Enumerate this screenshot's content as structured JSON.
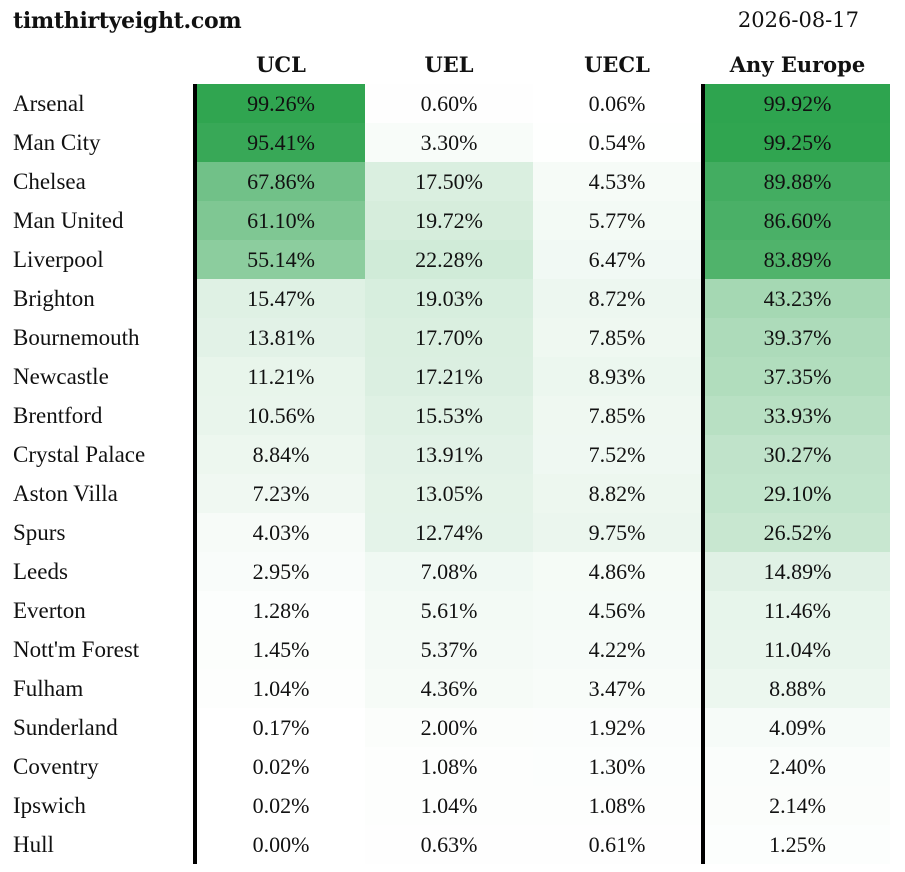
{
  "site": "timthirtyeight.com",
  "date": "2026-08-17",
  "headers": [
    "UCL",
    "UEL",
    "UECL",
    "Any Europe"
  ],
  "color_scale": {
    "low": "#ffffff",
    "high": "#2ea44f"
  },
  "rows": [
    {
      "team": "Arsenal",
      "values": [
        "99.26%",
        "0.60%",
        "0.06%",
        "99.92%"
      ]
    },
    {
      "team": "Man City",
      "values": [
        "95.41%",
        "3.30%",
        "0.54%",
        "99.25%"
      ]
    },
    {
      "team": "Chelsea",
      "values": [
        "67.86%",
        "17.50%",
        "4.53%",
        "89.88%"
      ]
    },
    {
      "team": "Man United",
      "values": [
        "61.10%",
        "19.72%",
        "5.77%",
        "86.60%"
      ]
    },
    {
      "team": "Liverpool",
      "values": [
        "55.14%",
        "22.28%",
        "6.47%",
        "83.89%"
      ]
    },
    {
      "team": "Brighton",
      "values": [
        "15.47%",
        "19.03%",
        "8.72%",
        "43.23%"
      ]
    },
    {
      "team": "Bournemouth",
      "values": [
        "13.81%",
        "17.70%",
        "7.85%",
        "39.37%"
      ]
    },
    {
      "team": "Newcastle",
      "values": [
        "11.21%",
        "17.21%",
        "8.93%",
        "37.35%"
      ]
    },
    {
      "team": "Brentford",
      "values": [
        "10.56%",
        "15.53%",
        "7.85%",
        "33.93%"
      ]
    },
    {
      "team": "Crystal Palace",
      "values": [
        "8.84%",
        "13.91%",
        "7.52%",
        "30.27%"
      ]
    },
    {
      "team": "Aston Villa",
      "values": [
        "7.23%",
        "13.05%",
        "8.82%",
        "29.10%"
      ]
    },
    {
      "team": "Spurs",
      "values": [
        "4.03%",
        "12.74%",
        "9.75%",
        "26.52%"
      ]
    },
    {
      "team": "Leeds",
      "values": [
        "2.95%",
        "7.08%",
        "4.86%",
        "14.89%"
      ]
    },
    {
      "team": "Everton",
      "values": [
        "1.28%",
        "5.61%",
        "4.56%",
        "11.46%"
      ]
    },
    {
      "team": "Nott'm Forest",
      "values": [
        "1.45%",
        "5.37%",
        "4.22%",
        "11.04%"
      ]
    },
    {
      "team": "Fulham",
      "values": [
        "1.04%",
        "4.36%",
        "3.47%",
        "8.88%"
      ]
    },
    {
      "team": "Sunderland",
      "values": [
        "0.17%",
        "2.00%",
        "1.92%",
        "4.09%"
      ]
    },
    {
      "team": "Coventry",
      "values": [
        "0.02%",
        "1.08%",
        "1.30%",
        "2.40%"
      ]
    },
    {
      "team": "Ipswich",
      "values": [
        "0.02%",
        "1.04%",
        "1.08%",
        "2.14%"
      ]
    },
    {
      "team": "Hull",
      "values": [
        "0.00%",
        "0.63%",
        "0.61%",
        "1.25%"
      ]
    }
  ]
}
